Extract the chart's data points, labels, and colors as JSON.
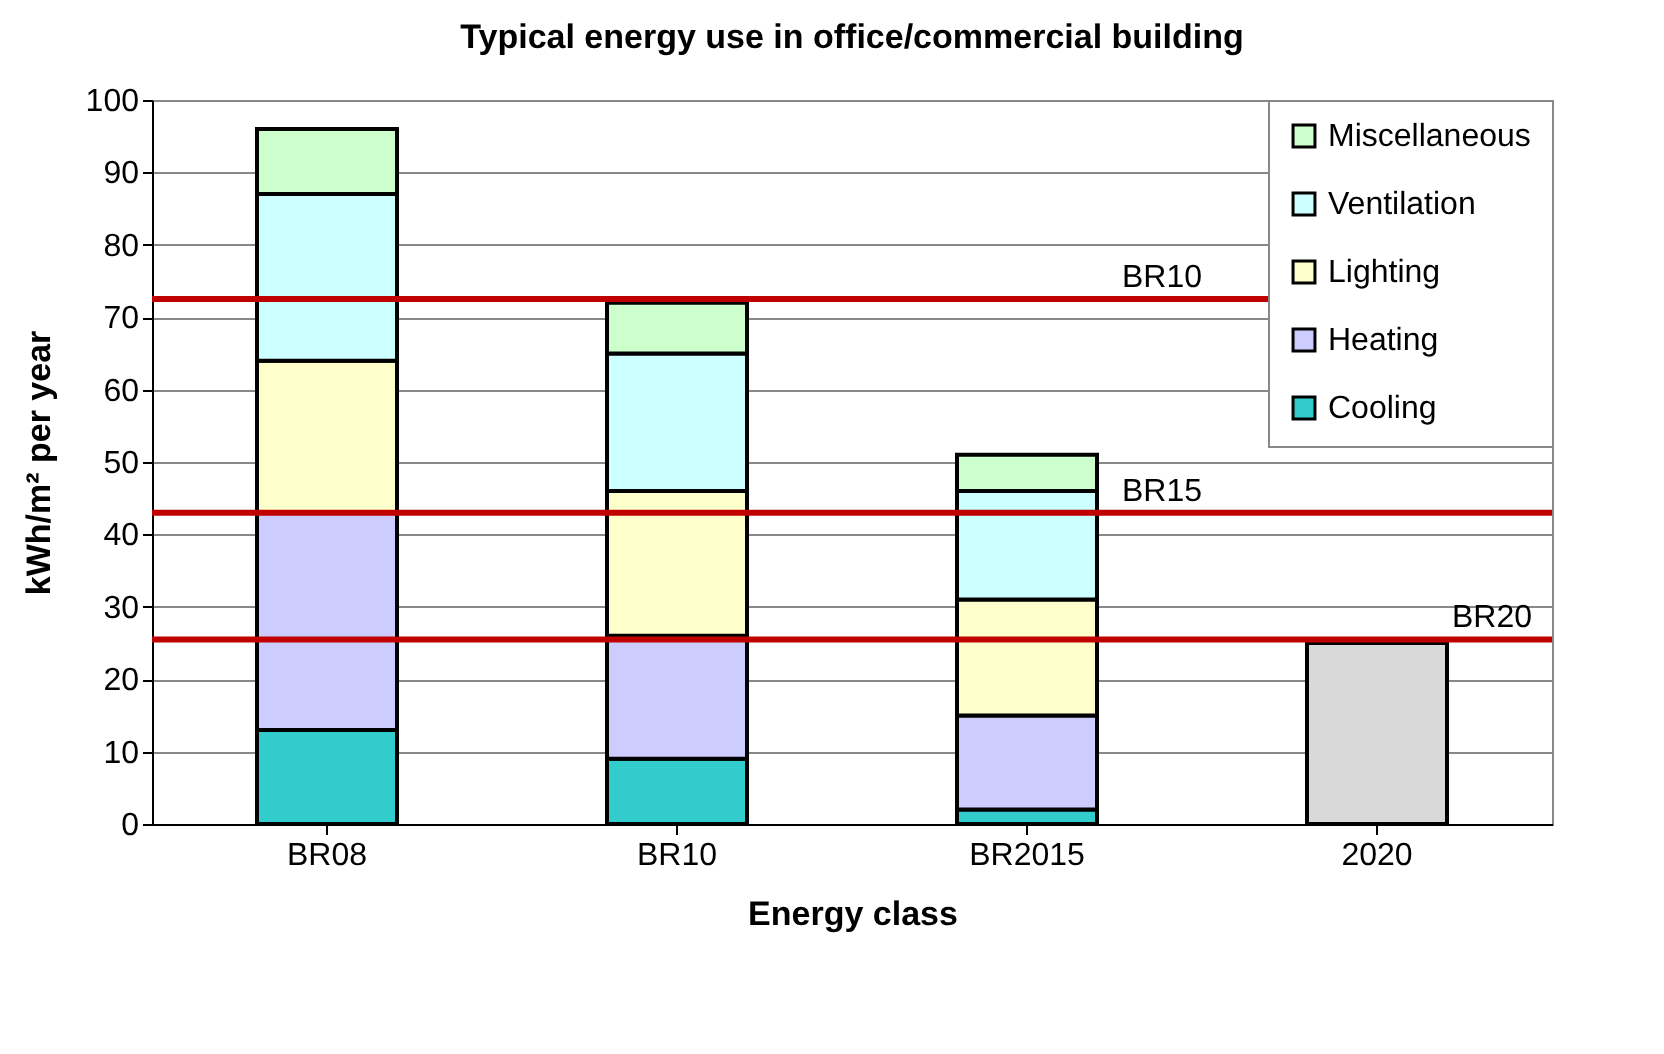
{
  "chart_data": {
    "type": "bar",
    "stacked": true,
    "title": "Typical energy use in office/commercial building",
    "xlabel": "Energy class",
    "ylabel": "kWh/m² per year",
    "categories": [
      "BR08",
      "BR10",
      "BR2015",
      "2020"
    ],
    "series": [
      {
        "name": "Cooling",
        "color": "#33cccc",
        "values": [
          13,
          9,
          2,
          null
        ]
      },
      {
        "name": "Heating",
        "color": "#ccccff",
        "values": [
          30,
          17,
          13,
          null
        ]
      },
      {
        "name": "Lighting",
        "color": "#ffffcc",
        "values": [
          21,
          20,
          16,
          null
        ]
      },
      {
        "name": "Ventilation",
        "color": "#ccffff",
        "values": [
          23,
          19,
          15,
          null
        ]
      },
      {
        "name": "Miscellaneous",
        "color": "#ccffcc",
        "values": [
          9,
          7,
          5,
          null
        ]
      },
      {
        "color": "#d9d9d9",
        "values": [
          null,
          null,
          null,
          25
        ]
      }
    ],
    "ylim": [
      0,
      100
    ],
    "yticks": [
      0,
      10,
      20,
      30,
      40,
      50,
      60,
      70,
      80,
      90,
      100
    ],
    "grid": "y",
    "legend": "top right",
    "ref_lines": [
      {
        "axis": "y",
        "value": 72.5,
        "label": "BR10",
        "color": "#c00000"
      },
      {
        "axis": "y",
        "value": 43,
        "label": "BR15",
        "color": "#c00000"
      },
      {
        "axis": "y",
        "value": 25.5,
        "label": "BR20",
        "color": "#c00000"
      }
    ]
  }
}
